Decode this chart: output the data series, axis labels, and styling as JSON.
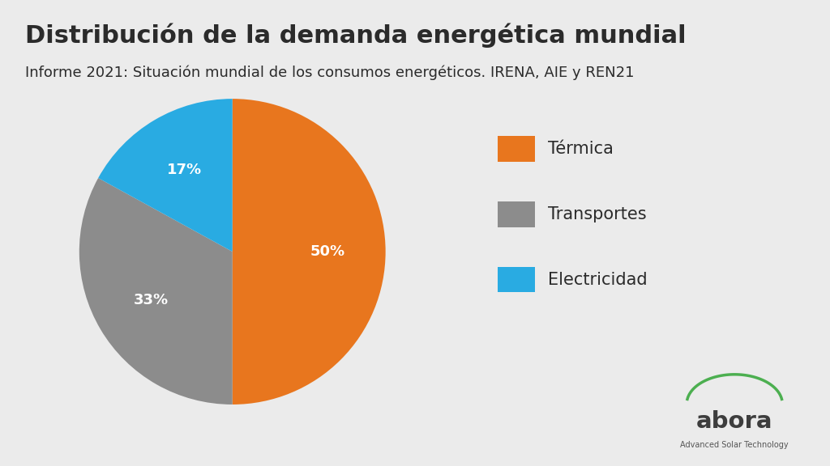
{
  "title": "Distribución de la demanda energética mundial",
  "subtitle": "Informe 2021: Situación mundial de los consumos energéticos. IRENA, AIE y REN21",
  "labels": [
    "Térmica",
    "Transportes",
    "Electricidad"
  ],
  "values": [
    50,
    33,
    17
  ],
  "colors": [
    "#E8761E",
    "#8C8C8C",
    "#29ABE2"
  ],
  "pct_labels": [
    "50%",
    "33%",
    "17%"
  ],
  "background_color": "#EBEBEB",
  "title_fontsize": 22,
  "subtitle_fontsize": 13,
  "legend_fontsize": 15,
  "pct_fontsize": 13,
  "startangle": 90,
  "logo_text_main": "abora",
  "logo_text_sub": "Advanced Solar Technology"
}
